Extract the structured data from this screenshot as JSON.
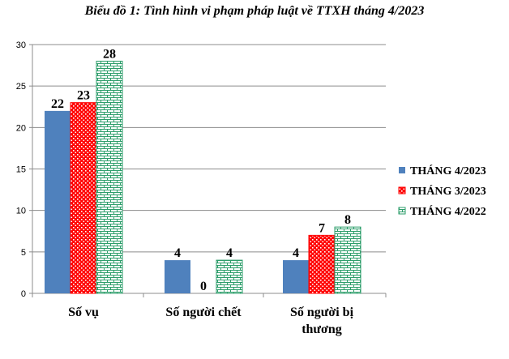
{
  "chart_data": {
    "type": "bar",
    "title": "Biểu đồ 1: Tình hình vi phạm pháp luật về TTXH tháng 4/2023",
    "categories": [
      [
        "Số vụ"
      ],
      [
        "Số người chết"
      ],
      [
        "Số người bị",
        "thương"
      ]
    ],
    "series": [
      {
        "name": "THÁNG 4/2023",
        "values": [
          22,
          4,
          4
        ],
        "color": "#4F81BD",
        "pattern": "solid"
      },
      {
        "name": "THÁNG 3/2023",
        "values": [
          23,
          0,
          7
        ],
        "color": "#FF0000",
        "pattern": "dots"
      },
      {
        "name": "THÁNG 4/2022",
        "values": [
          28,
          4,
          8
        ],
        "color": "#2E9E6B",
        "pattern": "brick"
      }
    ],
    "yticks": [
      "0",
      "5",
      "10",
      "15",
      "20",
      "25",
      "30"
    ],
    "ylim": [
      0,
      30
    ],
    "grid": true,
    "legend_position": "right"
  }
}
